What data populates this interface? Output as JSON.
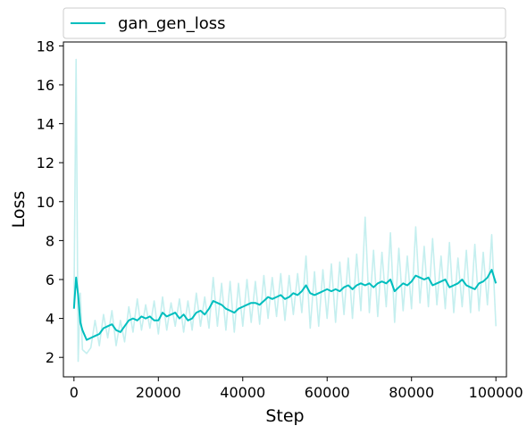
{
  "chart_data": {
    "type": "line",
    "xlabel": "Step",
    "ylabel": "Loss",
    "xlim": [
      -2500,
      102500
    ],
    "ylim": [
      1.0,
      18.2
    ],
    "xticks": [
      0,
      20000,
      40000,
      60000,
      80000,
      100000
    ],
    "xtick_labels": [
      "0",
      "20000",
      "40000",
      "60000",
      "80000",
      "100000"
    ],
    "yticks": [
      2,
      4,
      6,
      8,
      10,
      12,
      14,
      16,
      18
    ],
    "ytick_labels": [
      "2",
      "4",
      "6",
      "8",
      "10",
      "12",
      "14",
      "16",
      "18"
    ],
    "grid": false,
    "legend": {
      "placement": "top",
      "entries": [
        "gan_gen_loss"
      ]
    },
    "colors": {
      "smoothed": "#00bebe",
      "raw": "#c5efef"
    },
    "series": [
      {
        "name": "gan_gen_loss",
        "x": [
          0,
          500,
          1000,
          1500,
          2000,
          3000,
          4000,
          5000,
          6000,
          7000,
          8000,
          9000,
          10000,
          11000,
          12000,
          13000,
          14000,
          15000,
          16000,
          17000,
          18000,
          19000,
          20000,
          21000,
          22000,
          23000,
          24000,
          25000,
          26000,
          27000,
          28000,
          29000,
          30000,
          31000,
          32000,
          33000,
          34000,
          35000,
          36000,
          37000,
          38000,
          39000,
          40000,
          41000,
          42000,
          43000,
          44000,
          45000,
          46000,
          47000,
          48000,
          49000,
          50000,
          51000,
          52000,
          53000,
          54000,
          55000,
          56000,
          57000,
          58000,
          59000,
          60000,
          61000,
          62000,
          63000,
          64000,
          65000,
          66000,
          67000,
          68000,
          69000,
          70000,
          71000,
          72000,
          73000,
          74000,
          75000,
          76000,
          77000,
          78000,
          79000,
          80000,
          81000,
          82000,
          83000,
          84000,
          85000,
          86000,
          87000,
          88000,
          89000,
          90000,
          91000,
          92000,
          93000,
          94000,
          95000,
          96000,
          97000,
          98000,
          99000,
          100000
        ],
        "smoothed": [
          4.5,
          6.1,
          5.2,
          3.8,
          3.4,
          2.9,
          3.0,
          3.1,
          3.2,
          3.5,
          3.6,
          3.7,
          3.4,
          3.3,
          3.6,
          3.9,
          4.0,
          3.9,
          4.1,
          4.0,
          4.1,
          3.9,
          3.9,
          4.3,
          4.1,
          4.2,
          4.3,
          4.0,
          4.2,
          3.9,
          4.0,
          4.3,
          4.4,
          4.2,
          4.5,
          4.9,
          4.8,
          4.7,
          4.5,
          4.4,
          4.3,
          4.5,
          4.6,
          4.7,
          4.8,
          4.8,
          4.7,
          4.9,
          5.1,
          5.0,
          5.1,
          5.2,
          5.0,
          5.1,
          5.3,
          5.2,
          5.4,
          5.7,
          5.3,
          5.2,
          5.3,
          5.4,
          5.5,
          5.4,
          5.5,
          5.4,
          5.6,
          5.7,
          5.5,
          5.7,
          5.8,
          5.7,
          5.8,
          5.6,
          5.8,
          5.9,
          5.8,
          6.0,
          5.4,
          5.6,
          5.8,
          5.7,
          5.9,
          6.2,
          6.1,
          6.0,
          6.1,
          5.7,
          5.8,
          5.9,
          6.0,
          5.6,
          5.7,
          5.8,
          6.0,
          5.7,
          5.6,
          5.5,
          5.8,
          5.9,
          6.1,
          6.5,
          5.8
        ],
        "raw": [
          4.6,
          17.3,
          1.8,
          5.3,
          2.4,
          2.2,
          2.5,
          3.9,
          2.6,
          4.2,
          3.0,
          4.4,
          2.6,
          3.9,
          2.8,
          4.6,
          3.3,
          5.0,
          3.4,
          4.7,
          3.5,
          4.9,
          3.2,
          5.1,
          3.4,
          4.8,
          3.6,
          5.0,
          3.3,
          4.9,
          3.4,
          5.3,
          3.6,
          5.1,
          3.5,
          6.1,
          3.6,
          5.8,
          3.4,
          5.9,
          3.3,
          5.8,
          3.6,
          6.0,
          3.8,
          5.9,
          3.7,
          6.2,
          4.0,
          6.1,
          4.1,
          6.3,
          3.9,
          6.2,
          4.2,
          6.3,
          4.3,
          7.2,
          3.5,
          6.4,
          3.6,
          6.5,
          4.0,
          6.8,
          3.8,
          6.9,
          4.2,
          7.1,
          4.0,
          7.3,
          4.4,
          9.2,
          4.3,
          7.5,
          4.1,
          7.4,
          4.6,
          8.4,
          3.8,
          7.6,
          4.4,
          7.2,
          4.5,
          8.7,
          4.8,
          7.7,
          4.6,
          8.1,
          4.7,
          7.2,
          4.5,
          7.9,
          4.3,
          7.1,
          4.6,
          7.5,
          4.3,
          7.8,
          4.4,
          7.4,
          4.7,
          8.3,
          3.6
        ]
      }
    ]
  }
}
